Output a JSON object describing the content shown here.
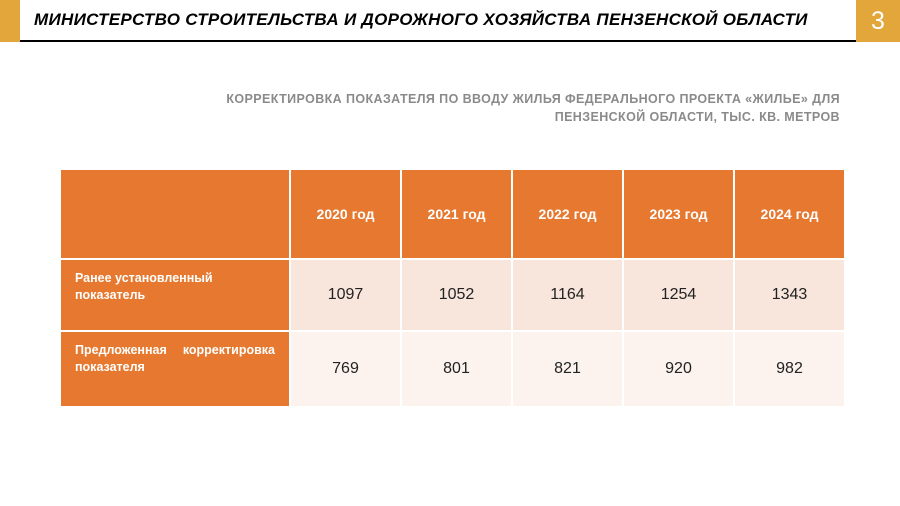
{
  "header": {
    "title": "МИНИСТЕРСТВО СТРОИТЕЛЬСТВА И ДОРОЖНОГО ХОЗЯЙСТВА ПЕНЗЕНСКОЙ ОБЛАСТИ",
    "page_number": "3",
    "accent_color": "#e2a63b"
  },
  "subtitle": {
    "line1": "КОРРЕКТИРОВКА ПОКАЗАТЕЛЯ ПО ВВОДУ ЖИЛЬЯ ФЕДЕРАЛЬНОГО ПРОЕКТА «ЖИЛЬЕ» ДЛЯ",
    "line2": "ПЕНЗЕНСКОЙ ОБЛАСТИ, ТЫС. КВ. МЕТРОВ",
    "color": "#8a8a8a"
  },
  "table": {
    "type": "table",
    "header_bg": "#e6792f",
    "header_color": "#ffffff",
    "row1_bg": "#f8e5dc",
    "row2_bg": "#fcf3ee",
    "cell_color": "#222222",
    "columns": [
      "2020 год",
      "2021 год",
      "2022 год",
      "2023 год",
      "2024 год"
    ],
    "rows": [
      {
        "label": "Ранее установленный показатель",
        "values": [
          "1097",
          "1052",
          "1164",
          "1254",
          "1343"
        ]
      },
      {
        "label_word1": "Предложенная",
        "label_word2": "корректировка",
        "label_line2": "показателя",
        "values": [
          "769",
          "801",
          "821",
          "920",
          "982"
        ]
      }
    ]
  }
}
